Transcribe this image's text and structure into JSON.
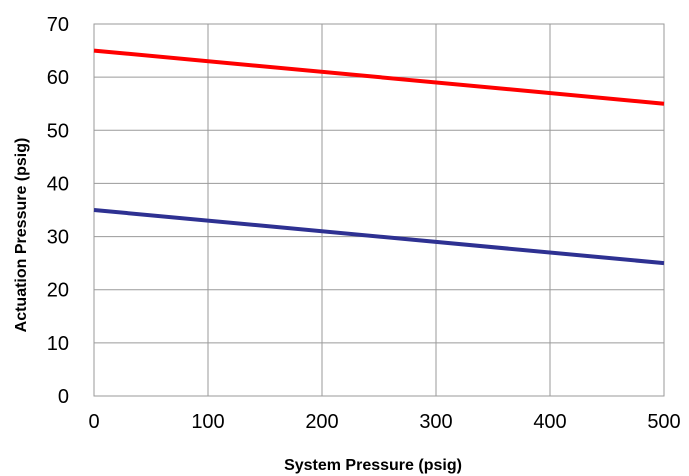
{
  "chart_data": {
    "type": "line",
    "xlabel": "System Pressure (psig)",
    "ylabel": "Actuation Pressure (psig)",
    "xlim": [
      0,
      500
    ],
    "ylim": [
      0,
      70
    ],
    "xticks": [
      0,
      100,
      200,
      300,
      400,
      500
    ],
    "yticks": [
      0,
      10,
      20,
      30,
      40,
      50,
      60,
      70
    ],
    "grid": true,
    "legend": "none",
    "series": [
      {
        "color": "#ff0000",
        "x": [
          0,
          500
        ],
        "y": [
          65,
          55
        ]
      },
      {
        "color": "#2e3192",
        "x": [
          0,
          500
        ],
        "y": [
          35,
          25
        ]
      }
    ]
  }
}
